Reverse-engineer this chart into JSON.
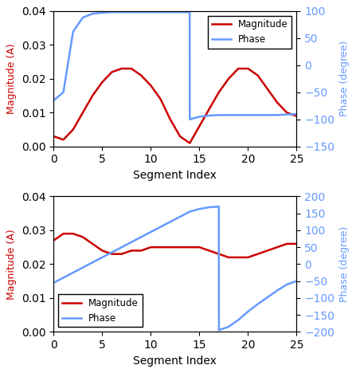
{
  "top": {
    "mag_x": [
      0,
      1,
      2,
      3,
      4,
      5,
      6,
      7,
      8,
      9,
      10,
      11,
      12,
      13,
      14,
      14.01,
      15,
      16,
      17,
      18,
      19,
      20,
      21,
      22,
      23,
      24,
      25
    ],
    "mag_y": [
      0.003,
      0.002,
      0.005,
      0.01,
      0.015,
      0.019,
      0.022,
      0.023,
      0.023,
      0.021,
      0.018,
      0.014,
      0.008,
      0.003,
      0.001,
      0.001,
      0.006,
      0.011,
      0.016,
      0.02,
      0.023,
      0.023,
      0.021,
      0.017,
      0.013,
      0.01,
      0.009
    ],
    "phase_x": [
      0,
      1,
      2,
      3,
      4,
      5,
      6,
      7,
      8,
      9,
      10,
      11,
      12,
      13,
      14,
      14.01,
      15,
      16,
      17,
      18,
      19,
      20,
      21,
      22,
      23,
      24,
      25
    ],
    "phase_y": [
      -65,
      -50,
      62,
      88,
      95,
      97,
      98,
      98,
      98,
      98,
      98,
      98,
      98,
      98,
      98,
      -100,
      -95,
      -93,
      -92,
      -92,
      -92,
      -92,
      -92,
      -92,
      -92,
      -91,
      -90
    ],
    "mag_ylim": [
      0.0,
      0.04
    ],
    "phase_ylim": [
      -150,
      100
    ],
    "phase_yticks": [
      -150,
      -100,
      -50,
      0,
      50,
      100
    ],
    "mag_yticks": [
      0.0,
      0.01,
      0.02,
      0.03,
      0.04
    ],
    "xlabel": "Segment Index",
    "ylabel_left": "Magnitude (A)",
    "ylabel_right": "Phase (degree)",
    "xlim": [
      0,
      25
    ],
    "xticks": [
      0,
      5,
      10,
      15,
      20,
      25
    ],
    "legend_loc": "upper right",
    "legend_bbox": null
  },
  "bottom": {
    "mag_x": [
      0,
      1,
      2,
      3,
      4,
      5,
      6,
      7,
      8,
      9,
      10,
      11,
      12,
      13,
      14,
      15,
      16,
      17,
      18,
      19,
      20,
      21,
      22,
      23,
      24,
      25
    ],
    "mag_y": [
      0.027,
      0.029,
      0.029,
      0.028,
      0.026,
      0.024,
      0.023,
      0.023,
      0.024,
      0.024,
      0.025,
      0.025,
      0.025,
      0.025,
      0.025,
      0.025,
      0.024,
      0.023,
      0.022,
      0.022,
      0.022,
      0.023,
      0.024,
      0.025,
      0.026,
      0.026
    ],
    "phase_x": [
      0,
      1,
      2,
      3,
      4,
      5,
      6,
      7,
      8,
      9,
      10,
      11,
      12,
      13,
      14,
      15,
      16,
      17,
      17.01,
      18,
      19,
      20,
      21,
      22,
      23,
      24,
      25
    ],
    "phase_y": [
      -55,
      -40,
      -25,
      -10,
      5,
      20,
      35,
      50,
      65,
      80,
      95,
      110,
      125,
      140,
      155,
      163,
      168,
      170,
      -195,
      -185,
      -165,
      -140,
      -118,
      -98,
      -78,
      -60,
      -50
    ],
    "mag_ylim": [
      0.0,
      0.04
    ],
    "phase_ylim": [
      -200,
      200
    ],
    "phase_yticks": [
      -200,
      -150,
      -100,
      -50,
      0,
      50,
      100,
      150,
      200
    ],
    "mag_yticks": [
      0.0,
      0.01,
      0.02,
      0.03,
      0.04
    ],
    "xlabel": "Segment Index",
    "ylabel_left": "Magnitude (A)",
    "ylabel_right": "Phase (degree)",
    "xlim": [
      0,
      25
    ],
    "xticks": [
      0,
      5,
      10,
      15,
      20,
      25
    ],
    "legend_loc": "lower left",
    "legend_bbox": null
  },
  "mag_color": "#cc0000",
  "phase_color": "#6699ff",
  "legend_mag": "Magnitude",
  "legend_phase": "Phase",
  "fig_width": 4.47,
  "fig_height": 4.68,
  "dpi": 100
}
